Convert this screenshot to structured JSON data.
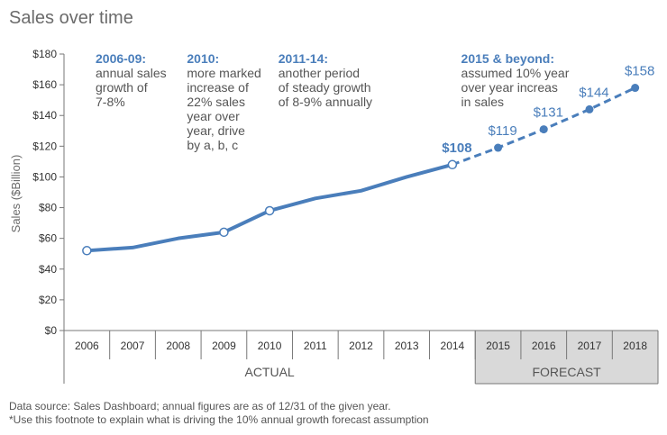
{
  "title": "Sales over time",
  "footnotes": [
    "Data source: Sales Dashboard; annual figures are as of 12/31 of the given year.",
    "*Use this footnote to explain what is driving the 10% annual growth forecast assumption"
  ],
  "colors": {
    "line": "#4a7ebb",
    "forecast_band": "#d9d9d9",
    "axis": "#777777"
  },
  "chart_data": {
    "type": "line",
    "ylabel": "Sales ($Billion)",
    "ylim": [
      0,
      180
    ],
    "ytick_step": 20,
    "yticks": [
      "$0",
      "$20",
      "$40",
      "$60",
      "$80",
      "$100",
      "$120",
      "$140",
      "$160",
      "$180"
    ],
    "categories": [
      "2006",
      "2007",
      "2008",
      "2009",
      "2010",
      "2011",
      "2012",
      "2013",
      "2014",
      "2015",
      "2016",
      "2017",
      "2018"
    ],
    "series": [
      {
        "values": [
          52,
          54,
          60,
          64,
          78,
          86,
          91,
          100,
          108,
          119,
          131,
          144,
          158
        ]
      }
    ],
    "forecast_start_index": 9,
    "marked_points": [
      0,
      3,
      4,
      8
    ],
    "data_labels": [
      {
        "index": 8,
        "text": "$108",
        "bold": true
      },
      {
        "index": 9,
        "text": "$119",
        "bold": false
      },
      {
        "index": 10,
        "text": "$131",
        "bold": false
      },
      {
        "index": 11,
        "text": "$144",
        "bold": false
      },
      {
        "index": 12,
        "text": "$158",
        "bold": false
      }
    ],
    "groups": [
      {
        "label": "ACTUAL",
        "start": 0,
        "end": 8
      },
      {
        "label": "FORECAST",
        "start": 9,
        "end": 12
      }
    ],
    "annotations": [
      {
        "index": 0,
        "heading": "2006-09:",
        "lines": [
          "annual sales",
          "growth of",
          "7-8%"
        ]
      },
      {
        "index": 2,
        "heading": "2010:",
        "lines": [
          "more marked",
          "increase of",
          "22% sales",
          "year over",
          "year, drive",
          "by a, b, c"
        ]
      },
      {
        "index": 4,
        "heading": "2011-14:",
        "lines": [
          "another period",
          "of steady growth",
          "of 8-9% annually"
        ]
      },
      {
        "index": 8,
        "heading": "2015 & beyond:",
        "lines": [
          "assumed 10% year",
          "over year increas",
          "in sales"
        ]
      }
    ]
  }
}
